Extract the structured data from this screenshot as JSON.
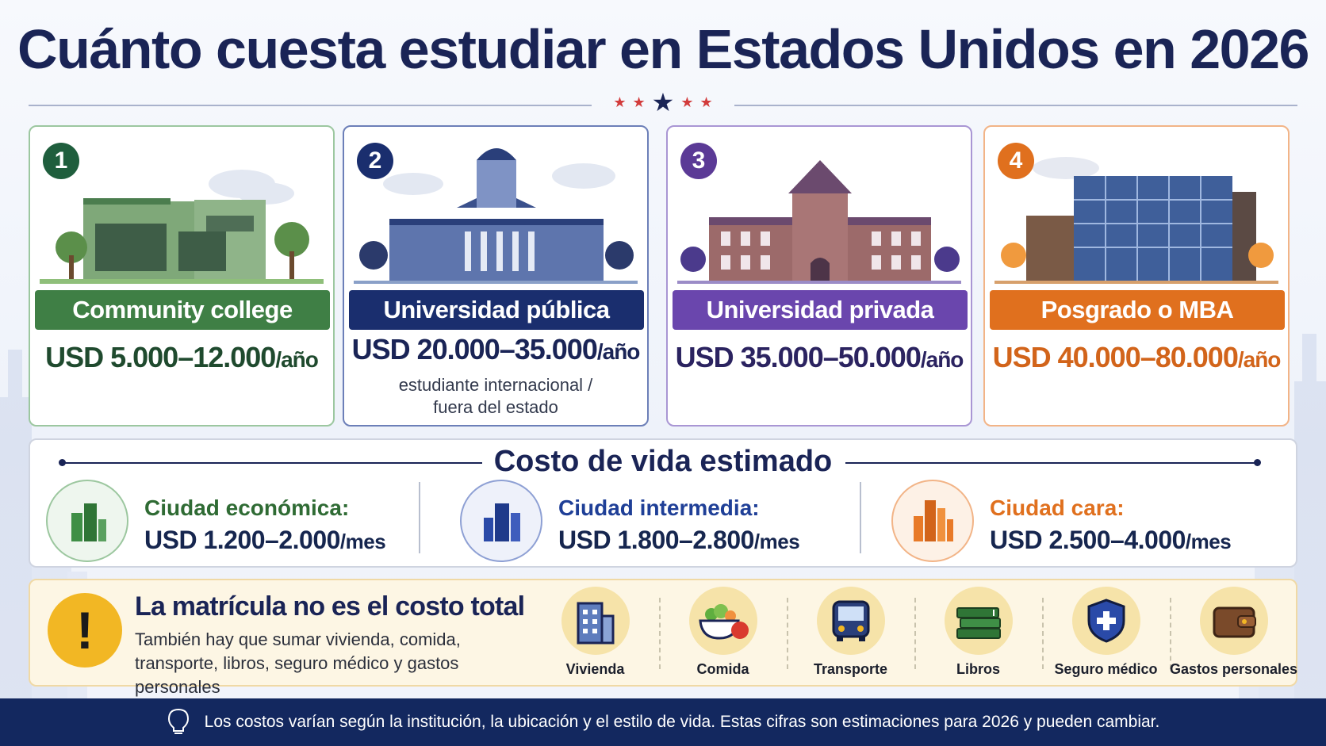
{
  "title": "Cuánto cuesta estudiar en Estados Unidos en 2026",
  "cards": [
    {
      "number": "1",
      "label": "Community college",
      "price": "USD 5.000–12.000",
      "unit": "/año",
      "note_line1": "",
      "note_line2": "",
      "color": "#3f7f45",
      "border": "#9cc7a0",
      "number_bg": "#1f5e3d",
      "price_color": "#1f4a2e"
    },
    {
      "number": "2",
      "label": "Universidad pública",
      "price": "USD 20.000–35.000",
      "unit": "/año",
      "note_line1": "estudiante internacional /",
      "note_line2": "fuera del estado",
      "color": "#1a2e6e",
      "border": "#6c7fb8",
      "number_bg": "#1a2e6e",
      "price_color": "#1a2456"
    },
    {
      "number": "3",
      "label": "Universidad privada",
      "price": "USD 35.000–50.000",
      "unit": "/año",
      "note_line1": "",
      "note_line2": "",
      "color": "#6a46ad",
      "border": "#a996d4",
      "number_bg": "#5b3a96",
      "price_color": "#2b2360"
    },
    {
      "number": "4",
      "label": "Posgrado o MBA",
      "price": "USD 40.000–80.000",
      "unit": "/año",
      "note_line1": "",
      "note_line2": "",
      "color": "#e0701e",
      "border": "#f2b487",
      "number_bg": "#e0701e",
      "price_color": "#d2641a"
    }
  ],
  "living": {
    "heading": "Costo de vida estimado",
    "cities": [
      {
        "label": "Ciudad económica:",
        "value": "USD 1.200–2.000",
        "unit": "/mes",
        "color": "#2f6b34",
        "accent": "#3f8f46"
      },
      {
        "label": "Ciudad intermedia:",
        "value": "USD 1.800–2.800",
        "unit": "/mes",
        "color": "#1f3f97",
        "accent": "#2a4aa8"
      },
      {
        "label": "Ciudad cara:",
        "value": "USD 2.500–4.000",
        "unit": "/mes",
        "color": "#e0701e",
        "accent": "#e87a28"
      }
    ]
  },
  "warning": {
    "title": "La matrícula no es el costo total",
    "text": "También hay que sumar vivienda, comida, transporte, libros, seguro médico y gastos personales",
    "items": [
      {
        "label": "Vivienda",
        "icon": "building-icon"
      },
      {
        "label": "Comida",
        "icon": "food-bowl-icon"
      },
      {
        "label": "Transporte",
        "icon": "bus-icon"
      },
      {
        "label": "Libros",
        "icon": "books-icon"
      },
      {
        "label": "Seguro médico",
        "icon": "shield-cross-icon"
      },
      {
        "label": "Gastos personales",
        "icon": "wallet-icon"
      }
    ]
  },
  "footer": "Los costos varían según la institución, la ubicación y el estilo de vida. Estas cifras son estimaciones para 2026 y pueden cambiar."
}
